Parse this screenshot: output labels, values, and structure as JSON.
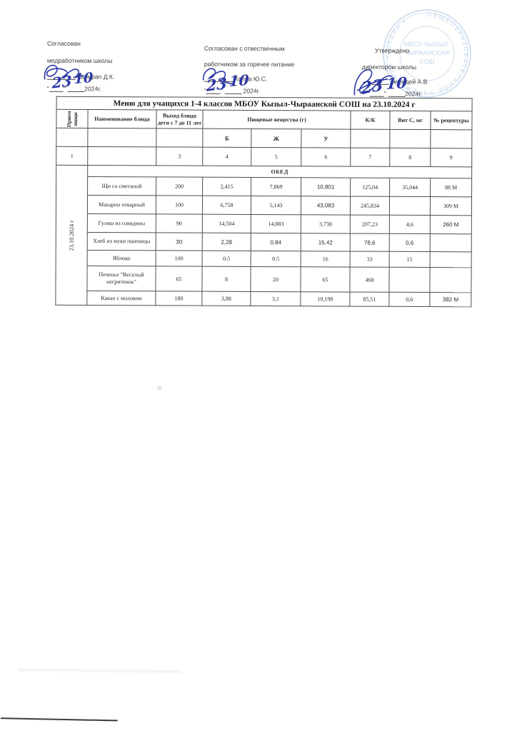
{
  "approvals": {
    "left": {
      "line1": "Согласован",
      "line2": "медработником школы",
      "name": "Шымрап Д.К.",
      "day": "23",
      "month": "10",
      "year": "2024г."
    },
    "center": {
      "line1": "Согласован с отвественным",
      "line2": "работником за горячее питание",
      "name": "Калаа Ю.С.",
      "day": "23",
      "month": "10",
      "year": "2024г."
    },
    "right": {
      "line1": "Утверждено",
      "line2": "директором школы",
      "name": "Энендей А.В",
      "day": "23",
      "month": "10",
      "year": "2024г."
    }
  },
  "stamp": {
    "outer_text": "ОБЩЕОБРАЗОВАТЕЛЬНОЕ УЧРЕЖДЕНИЕ • ШКОЛА •",
    "inner_line1": "МБОУ КЫЗЫЛ-",
    "inner_line2": "ЧЫРААНСКАЯ",
    "inner_line3": "СОШ",
    "color": "#9bbde2"
  },
  "table": {
    "title": "Меню для учащихся 1-4 классов МБОУ Кызыл-Чыраанской СОШ на 23.10.2024 г",
    "headers": {
      "meal": "Прием\nпищи",
      "dish": "Наименование блюда",
      "portion": "Выход блюда дети с 7 до 11 лет",
      "nutrients": "Пищевые вещества (г)",
      "kk": "К/К",
      "vitc": "Вит С, мг",
      "recipe": "№ рецептуры"
    },
    "sub_headers": [
      "Б",
      "Ж",
      "У"
    ],
    "col_numbers": [
      "1",
      "",
      "3",
      "4",
      "5",
      "6",
      "7",
      "8",
      "9"
    ],
    "meal_label": "ОБЕД",
    "date_label": "23.10.2024 г",
    "rows": [
      {
        "cells": [
          "Щи со сметаной",
          "200",
          "2,415",
          "7,869",
          "10,801",
          "125,04",
          "35,044",
          "88 М"
        ],
        "styles": [
          "",
          "",
          "",
          "",
          "big",
          "",
          "",
          ""
        ]
      },
      {
        "cells": [
          "Макарон отварный",
          "100",
          "6,758",
          "5,143",
          "43,083",
          "245,834",
          "",
          "309 М"
        ],
        "styles": [
          "",
          "",
          "",
          "",
          "big",
          "",
          "",
          ""
        ]
      },
      {
        "cells": [
          "Гуляш из говядины",
          "90",
          "14,504",
          "14,883",
          "3,738",
          "207,23",
          "4,6",
          "260 М"
        ],
        "styles": [
          "",
          "",
          "",
          "",
          "",
          "",
          "low",
          "ins"
        ]
      },
      {
        "cells": [
          "Хлеб из муки пшеницы",
          "30",
          "2,28",
          "0,84",
          "15,42",
          "78,6",
          "0,6",
          ""
        ],
        "styles": [
          "",
          "big",
          "big",
          "big",
          "big",
          "big",
          "big",
          ""
        ]
      },
      {
        "cells": [
          "Яблоко",
          "100",
          "0.5",
          "0.5",
          "16",
          "33",
          "15",
          ""
        ],
        "styles": [
          "",
          "",
          "",
          "",
          "",
          "",
          "",
          ""
        ]
      },
      {
        "cells": [
          "Печенье \"Веселый негритенок\"",
          "65",
          "8",
          "20",
          "65",
          "468",
          "",
          ""
        ],
        "styles": [
          "",
          "",
          "",
          "",
          "",
          "",
          "",
          ""
        ]
      },
      {
        "cells": [
          "Какао с молоком",
          "180",
          "3,88",
          "3,1",
          "10,198",
          "85,51",
          "0,6",
          "382 М"
        ],
        "styles": [
          "",
          "",
          "",
          "",
          "",
          "",
          "",
          "ins"
        ]
      }
    ]
  }
}
